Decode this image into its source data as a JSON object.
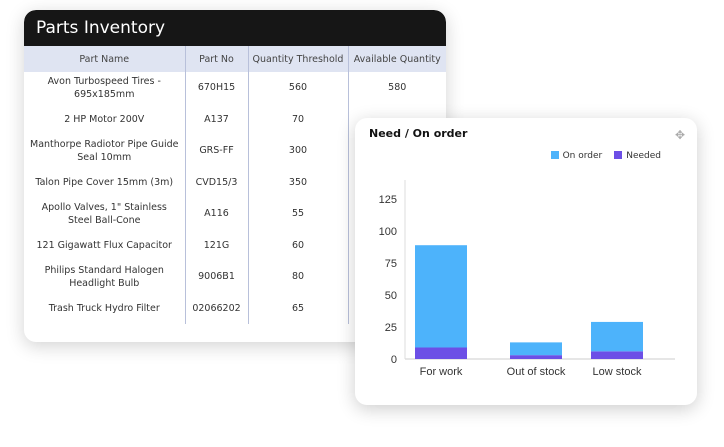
{
  "inventory": {
    "title": "Parts Inventory",
    "columns": [
      "Part Name",
      "Part No",
      "Quantity Threshold",
      "Available Quantity"
    ],
    "rows": [
      [
        "Avon Turbospeed Tires - 695x185mm",
        "670H15",
        "560",
        "580"
      ],
      [
        "2 HP Motor 200V",
        "A137",
        "70",
        ""
      ],
      [
        "Manthorpe Radiotor Pipe Guide Seal 10mm",
        "GRS-FF",
        "300",
        ""
      ],
      [
        "Talon Pipe Cover 15mm (3m)",
        "CVD15/3",
        "350",
        ""
      ],
      [
        "Apollo Valves, 1\" Stainless Steel Ball-Cone",
        "A116",
        "55",
        ""
      ],
      [
        "121 Gigawatt Flux Capacitor",
        "121G",
        "60",
        ""
      ],
      [
        "Philips Standard Halogen Headlight Bulb",
        "9006B1",
        "80",
        ""
      ],
      [
        "Trash Truck Hydro Filter",
        "02066202",
        "65",
        ""
      ]
    ]
  },
  "chart_data": {
    "type": "bar",
    "stacked": true,
    "title": "Need / On order",
    "categories": [
      "For work",
      "Out of stock",
      "Low stock"
    ],
    "series": [
      {
        "name": "Needed",
        "values": [
          9,
          3,
          6
        ],
        "color": "#6c4fe6"
      },
      {
        "name": "On order",
        "values": [
          80,
          10,
          23
        ],
        "color": "#4db3fb"
      }
    ],
    "legend_order": [
      "On order",
      "Needed"
    ],
    "yticks": [
      0,
      25,
      50,
      75,
      100,
      125
    ],
    "ylim": [
      0,
      140
    ],
    "legend": "top-right",
    "grid": false,
    "icon": "move-icon"
  }
}
